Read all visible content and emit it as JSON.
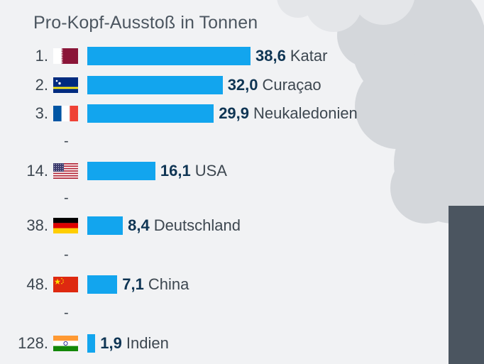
{
  "title": "Pro-Kopf-Ausstoß in Tonnen",
  "separator": "-",
  "chart_data": {
    "type": "bar",
    "orientation": "horizontal",
    "title": "Pro-Kopf-Ausstoß in Tonnen",
    "categories": [
      "Katar",
      "Curaçao",
      "Neukaledonien",
      "USA",
      "Deutschland",
      "China",
      "Indien"
    ],
    "ranks": [
      "1.",
      "2.",
      "3.",
      "14.",
      "38.",
      "48.",
      "128."
    ],
    "values": [
      38.6,
      32.0,
      29.9,
      16.1,
      8.4,
      7.1,
      1.9
    ],
    "value_labels": [
      "38,6",
      "32,0",
      "29,9",
      "16,1",
      "8,4",
      "7,1",
      "1,9"
    ],
    "flags": [
      "qatar-flag-icon",
      "curacao-flag-icon",
      "france-flag-icon",
      "usa-flag-icon",
      "germany-flag-icon",
      "china-flag-icon",
      "india-flag-icon"
    ],
    "bar_color": "#12a5ee",
    "value_color": "#0f3554"
  }
}
